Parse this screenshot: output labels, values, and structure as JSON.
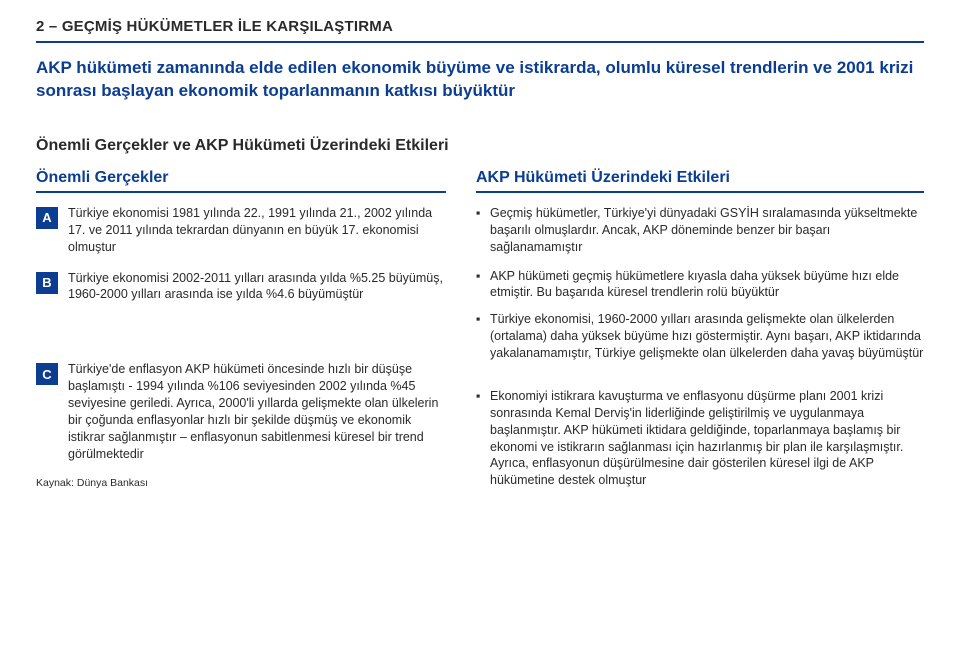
{
  "page_title": "2 – GEÇMİŞ HÜKÜMETLER İLE KARŞILAŞTIRMA",
  "subtitle": "AKP hükümeti zamanında elde edilen ekonomik büyüme ve istikrarda, olumlu küresel trendlerin ve 2001 krizi sonrası başlayan ekonomik toparlanmanın katkısı büyüktür",
  "section_heading": "Önemli Gerçekler ve AKP Hükümeti Üzerindeki Etkileri",
  "left_col_head": "Önemli Gerçekler",
  "right_col_head": "AKP Hükümeti Üzerindeki Etkileri",
  "badges": {
    "a": "A",
    "b": "B",
    "c": "C"
  },
  "left": {
    "a": "Türkiye ekonomisi 1981 yılında 22., 1991 yılında 21., 2002 yılında 17. ve 2011 yılında tekrardan dünyanın en büyük 17. ekonomisi olmuştur",
    "b": "Türkiye ekonomisi 2002-2011 yılları arasında yılda %5.25 büyümüş, 1960-2000 yılları arasında ise yılda %4.6 büyümüştür",
    "c": "Türkiye'de enflasyon AKP hükümeti öncesinde hızlı bir düşüşe başlamıştı - 1994 yılında %106 seviyesinden 2002 yılında %45 seviyesine geriledi. Ayrıca, 2000'li yıllarda gelişmekte olan ülkelerin bir çoğunda enflasyonlar hızlı bir şekilde düşmüş ve ekonomik istikrar sağlanmıştır – enflasyonun sabitlenmesi küresel bir trend görülmektedir"
  },
  "right": {
    "a": "Geçmiş hükümetler, Türkiye'yi dünyadaki GSYİH sıralamasında yükseltmekte başarılı olmuşlardır. Ancak, AKP döneminde benzer bir başarı sağlanamamıştır",
    "b1": "AKP hükümeti geçmiş hükümetlere kıyasla daha yüksek büyüme hızı elde etmiştir. Bu başarıda küresel trendlerin rolü büyüktür",
    "b2": "Türkiye ekonomisi, 1960-2000 yılları arasında gelişmekte olan ülkelerden (ortalama) daha yüksek büyüme hızı göstermiştir. Aynı başarı, AKP iktidarında yakalanamamıştır, Türkiye gelişmekte olan ülkelerden daha yavaş büyümüştür",
    "c": "Ekonomiyi istikrara kavuşturma ve enflasyonu düşürme planı 2001 krizi sonrasında Kemal Derviş'in liderliğinde geliştirilmiş ve uygulanmaya başlanmıştır. AKP hükümeti iktidara geldiğinde, toparlanmaya başlamış bir ekonomi ve istikrarın sağlanması için hazırlanmış bir plan ile karşılaşmıştır. Ayrıca, enflasyonun düşürülmesine dair gösterilen küresel ilgi de AKP hükümetine destek olmuştur"
  },
  "source": "Kaynak: Dünya Bankası",
  "colors": {
    "brand": "#0b3d91",
    "text": "#2a2a2a",
    "bg": "#ffffff"
  }
}
